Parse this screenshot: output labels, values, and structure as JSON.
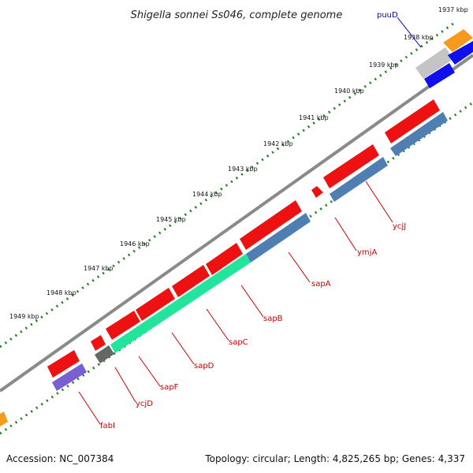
{
  "title": "Shigella sonnei Ss046, complete genome",
  "footer": {
    "accession": "Accession: NC_007384",
    "info": "Topology: circular; Length: 4,825,265 bp; Genes: 4,337"
  },
  "colors": {
    "backbone": "#8a8a8a",
    "ruler_dots": "#1f7a1f",
    "cds_forward": "#ee1111",
    "cds_blue": "#4f7fb2",
    "cds_green": "#22e49a",
    "cds_purple": "#7a5fd0",
    "cds_gray": "#666666",
    "cds_orange": "#f59a1c",
    "cds_darkblue": "#1010ee",
    "cds_silver": "#c4c4c4",
    "label_red": "#cc0000",
    "label_blue": "#0000cc"
  },
  "ruler_ticks": [
    {
      "label": "1937 kbp"
    },
    {
      "label": "1938 kbp"
    },
    {
      "label": "1939 kbp"
    },
    {
      "label": "1940 kbp"
    },
    {
      "label": "1941 kbp"
    },
    {
      "label": "1942 kbp"
    },
    {
      "label": "1943 kbp"
    },
    {
      "label": "1944 kbp"
    },
    {
      "label": "1945 kbp"
    },
    {
      "label": "1946 kbp"
    },
    {
      "label": "1947 kbp"
    },
    {
      "label": "1948 kbp"
    },
    {
      "label": "1949 kbp"
    }
  ],
  "gene_labels": [
    {
      "name": "puuD"
    },
    {
      "name": "ycjJ"
    },
    {
      "name": "ymjA"
    },
    {
      "name": "sapA"
    },
    {
      "name": "sapB"
    },
    {
      "name": "sapC"
    },
    {
      "name": "sapD"
    },
    {
      "name": "sapF"
    },
    {
      "name": "ycjD"
    },
    {
      "name": "fabI"
    }
  ]
}
